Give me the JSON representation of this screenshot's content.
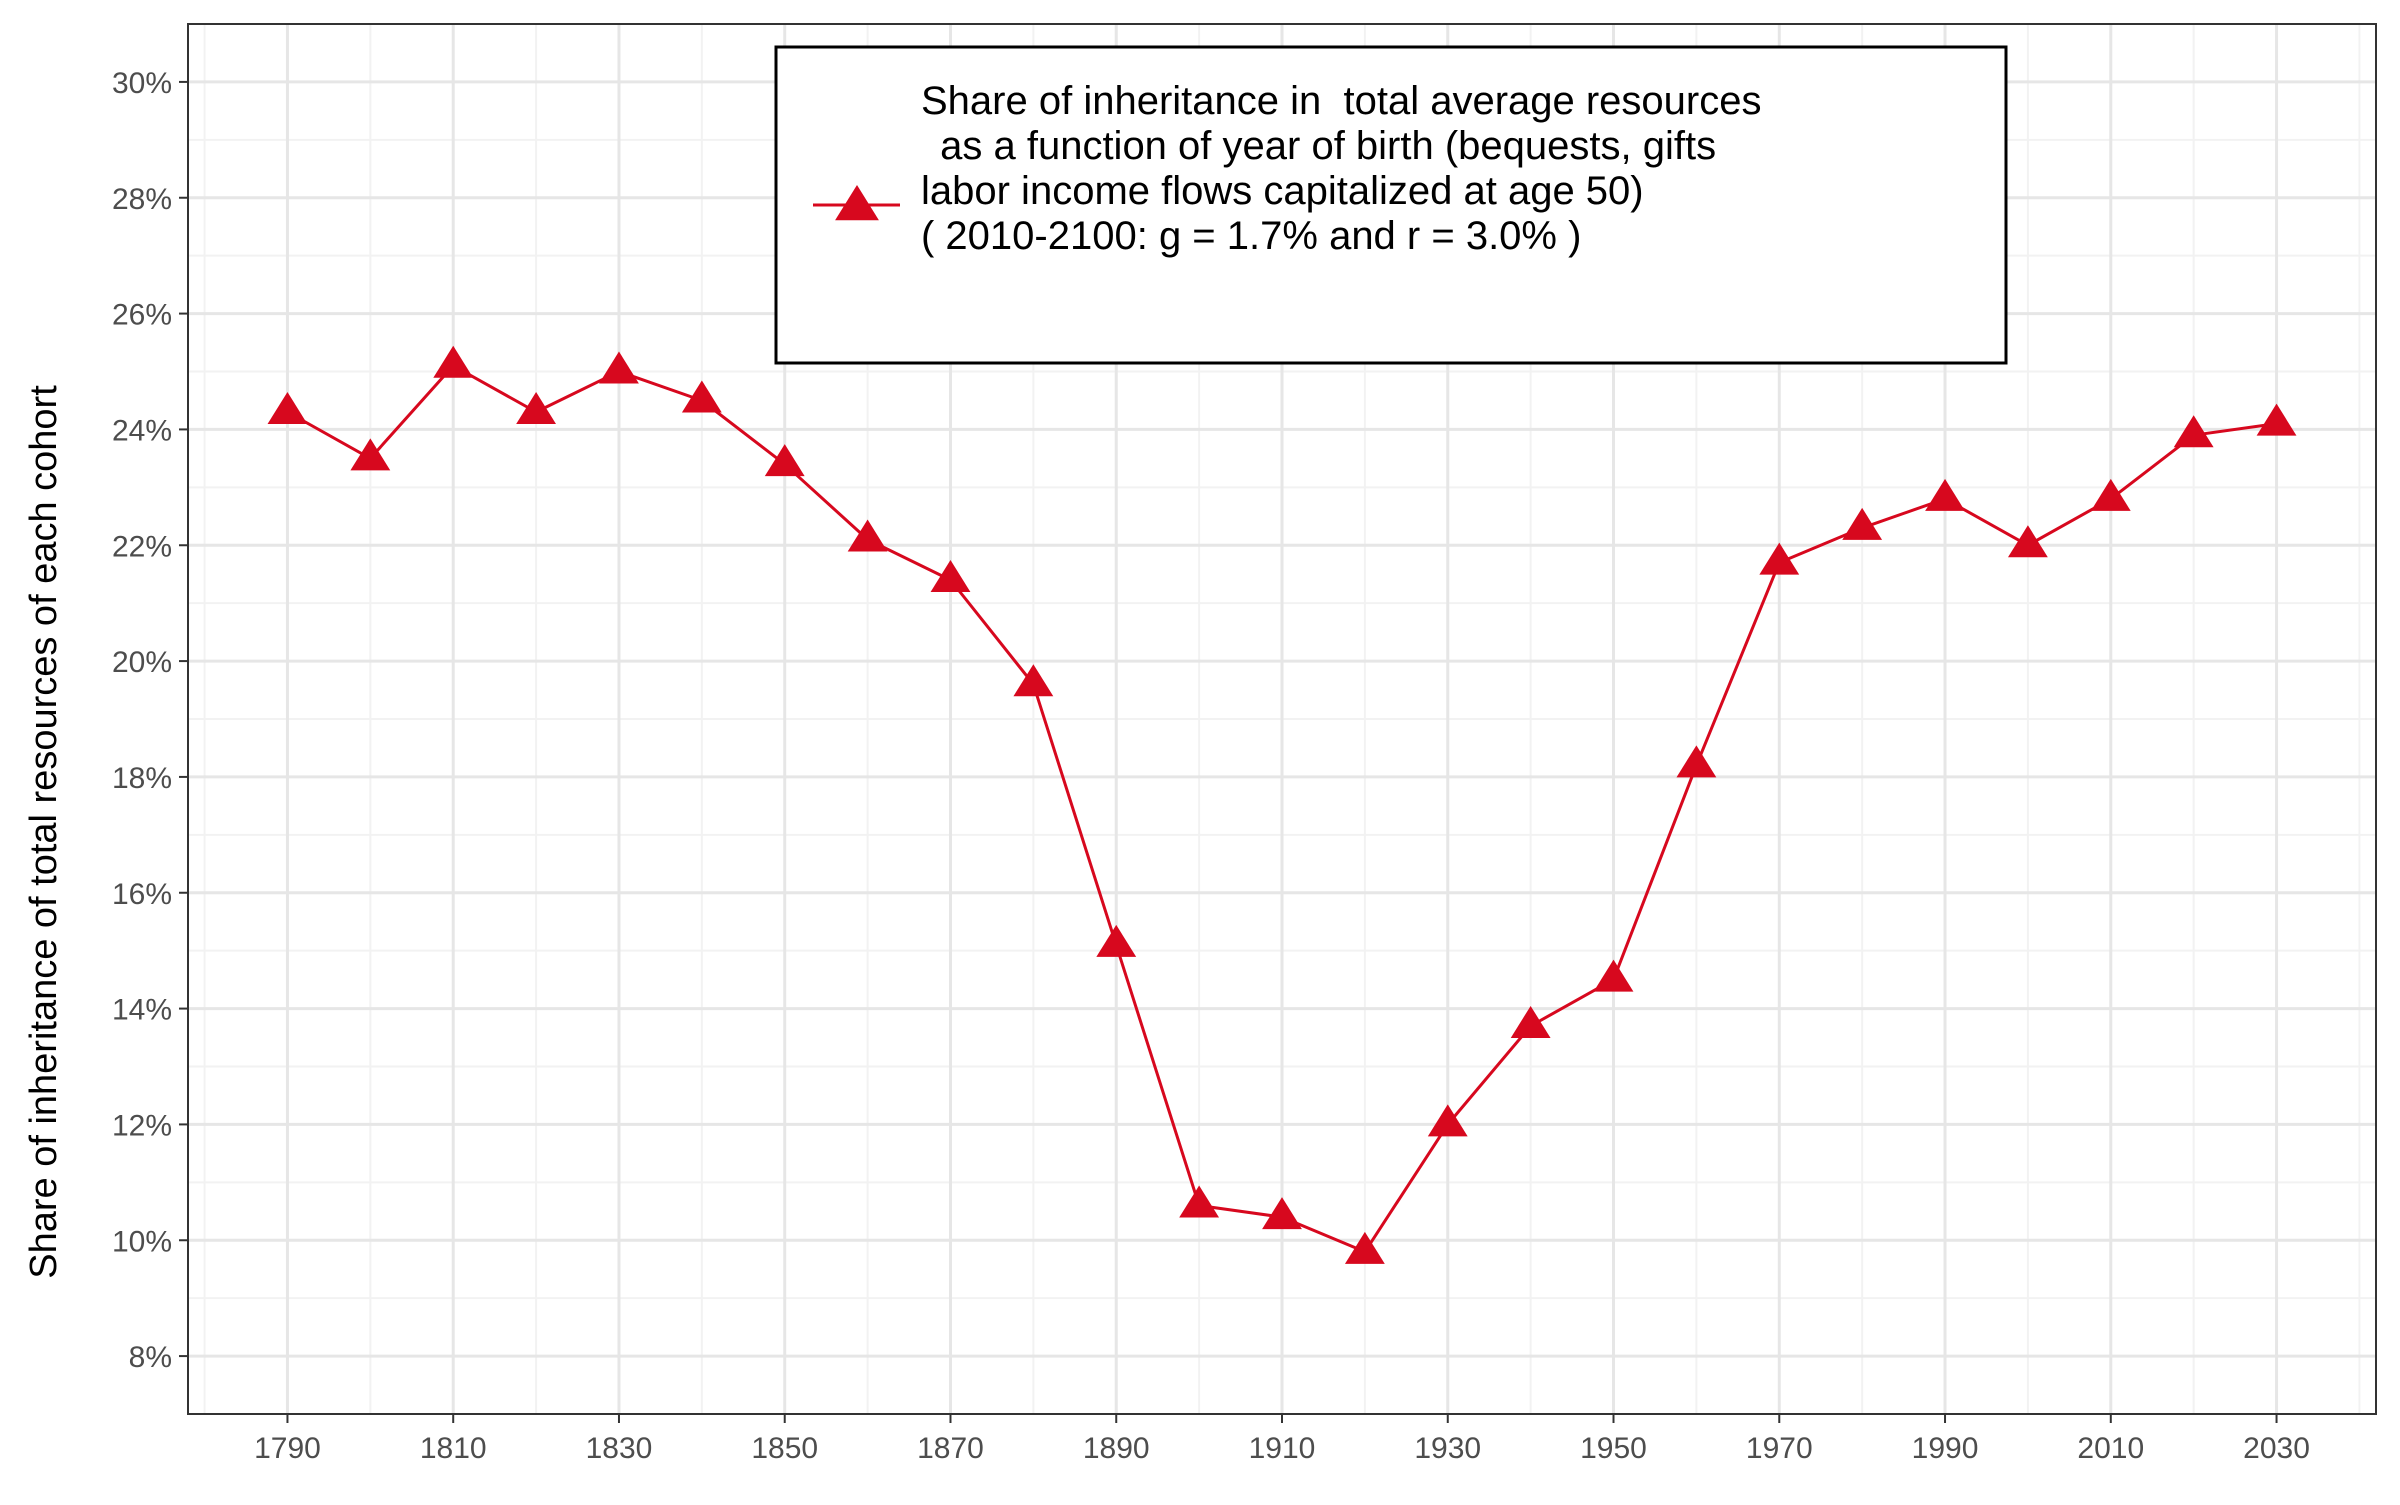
{
  "chart_data": {
    "type": "line",
    "title": "",
    "xlabel": "",
    "ylabel": "Share of inheritance of total resources of each cohort",
    "xlim": [
      1778,
      2042
    ],
    "ylim": [
      0.07,
      0.31
    ],
    "x_ticks": [
      1790,
      1810,
      1830,
      1850,
      1870,
      1890,
      1910,
      1930,
      1950,
      1970,
      1990,
      2010,
      2030
    ],
    "y_ticks": [
      0.08,
      0.1,
      0.12,
      0.14,
      0.16,
      0.18,
      0.2,
      0.22,
      0.24,
      0.26,
      0.28,
      0.3
    ],
    "y_tick_labels": [
      "8%",
      "10%",
      "12%",
      "14%",
      "16%",
      "18%",
      "20%",
      "22%",
      "24%",
      "26%",
      "28%",
      "30%"
    ],
    "grid": true,
    "legend_position": "top-center",
    "series": [
      {
        "name": "Share of inheritance in  total average resources\n as a function of year of birth (bequests, gifts\nlabor income flows capitalized at age 50)\n( 2010-2100: g = 1.7% and r = 3.0% )",
        "color": "#d7081e",
        "marker": "triangle",
        "x": [
          1790,
          1800,
          1810,
          1820,
          1830,
          1840,
          1850,
          1860,
          1870,
          1880,
          1890,
          1900,
          1910,
          1920,
          1930,
          1940,
          1950,
          1960,
          1970,
          1980,
          1990,
          2000,
          2010,
          2020,
          2030
        ],
        "y": [
          0.243,
          0.235,
          0.251,
          0.243,
          0.25,
          0.245,
          0.234,
          0.221,
          0.214,
          0.196,
          0.151,
          0.106,
          0.104,
          0.098,
          0.12,
          0.137,
          0.145,
          0.182,
          0.217,
          0.223,
          0.228,
          0.22,
          0.228,
          0.239,
          0.241
        ]
      }
    ]
  }
}
